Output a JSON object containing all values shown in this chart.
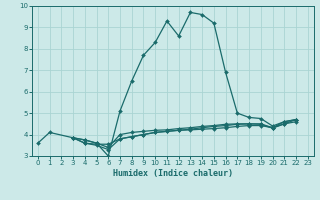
{
  "title": "",
  "xlabel": "Humidex (Indice chaleur)",
  "bg_color": "#cce9e8",
  "grid_color": "#aad4d3",
  "line_color": "#1a6b6b",
  "xlim": [
    -0.5,
    23.5
  ],
  "ylim": [
    3,
    10
  ],
  "xticks": [
    0,
    1,
    2,
    3,
    4,
    5,
    6,
    7,
    8,
    9,
    10,
    11,
    12,
    13,
    14,
    15,
    16,
    17,
    18,
    19,
    20,
    21,
    22,
    23
  ],
  "yticks": [
    3,
    4,
    5,
    6,
    7,
    8,
    9,
    10
  ],
  "series": [
    [
      0,
      3.6
    ],
    [
      1,
      4.1
    ],
    [
      3,
      3.85
    ],
    [
      4,
      3.75
    ],
    [
      5,
      3.6
    ],
    [
      6,
      3.0
    ],
    [
      7,
      5.1
    ],
    [
      8,
      6.5
    ],
    [
      9,
      7.7
    ],
    [
      10,
      8.3
    ],
    [
      11,
      9.3
    ],
    [
      12,
      8.6
    ],
    [
      13,
      9.7
    ],
    [
      14,
      9.6
    ],
    [
      15,
      9.2
    ],
    [
      16,
      6.9
    ],
    [
      17,
      5.0
    ],
    [
      18,
      4.8
    ],
    [
      19,
      4.75
    ],
    [
      20,
      4.4
    ],
    [
      21,
      4.6
    ],
    [
      22,
      4.7
    ]
  ],
  "series2": [
    [
      3,
      3.85
    ],
    [
      4,
      3.75
    ],
    [
      5,
      3.6
    ],
    [
      6,
      3.4
    ],
    [
      7,
      4.0
    ],
    [
      8,
      4.1
    ],
    [
      9,
      4.15
    ],
    [
      10,
      4.2
    ],
    [
      11,
      4.22
    ],
    [
      12,
      4.28
    ],
    [
      13,
      4.32
    ],
    [
      14,
      4.38
    ],
    [
      15,
      4.42
    ],
    [
      16,
      4.48
    ],
    [
      17,
      4.5
    ],
    [
      18,
      4.5
    ],
    [
      19,
      4.48
    ],
    [
      20,
      4.3
    ],
    [
      21,
      4.5
    ],
    [
      22,
      4.6
    ]
  ],
  "series3": [
    [
      3,
      3.85
    ],
    [
      4,
      3.6
    ],
    [
      5,
      3.55
    ],
    [
      6,
      3.55
    ],
    [
      7,
      3.8
    ],
    [
      8,
      3.9
    ],
    [
      9,
      4.0
    ],
    [
      10,
      4.1
    ],
    [
      11,
      4.15
    ],
    [
      12,
      4.2
    ],
    [
      13,
      4.22
    ],
    [
      14,
      4.25
    ],
    [
      15,
      4.28
    ],
    [
      16,
      4.32
    ],
    [
      17,
      4.38
    ],
    [
      18,
      4.42
    ],
    [
      19,
      4.42
    ],
    [
      20,
      4.32
    ],
    [
      21,
      4.5
    ],
    [
      22,
      4.7
    ]
  ],
  "series4": [
    [
      3,
      3.85
    ],
    [
      4,
      3.6
    ],
    [
      5,
      3.5
    ],
    [
      6,
      3.3
    ],
    [
      7,
      3.8
    ],
    [
      8,
      3.9
    ],
    [
      9,
      4.0
    ],
    [
      10,
      4.1
    ],
    [
      11,
      4.15
    ],
    [
      12,
      4.2
    ],
    [
      13,
      4.25
    ],
    [
      14,
      4.32
    ],
    [
      15,
      4.38
    ],
    [
      16,
      4.42
    ],
    [
      17,
      4.48
    ],
    [
      18,
      4.5
    ],
    [
      19,
      4.5
    ],
    [
      20,
      4.32
    ],
    [
      21,
      4.6
    ],
    [
      22,
      4.7
    ]
  ],
  "marker": "D",
  "markersize": 2.0,
  "linewidth": 0.9
}
